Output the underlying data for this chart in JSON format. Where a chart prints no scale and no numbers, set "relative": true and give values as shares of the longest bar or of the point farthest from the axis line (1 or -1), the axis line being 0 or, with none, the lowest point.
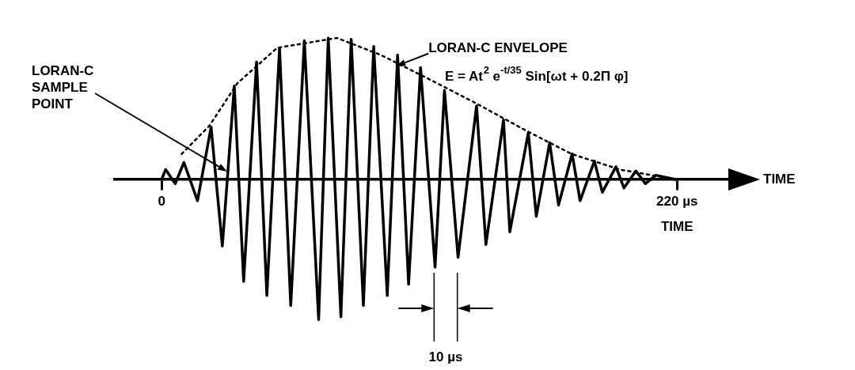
{
  "chart_data": {
    "type": "line",
    "relative": true,
    "xlabel": "TIME",
    "xlim": [
      -20,
      252
    ],
    "xticks": [
      0,
      {
        "value": 220,
        "label": "220 µs"
      }
    ],
    "series": [
      {
        "color": "#000000",
        "line_style": "solid",
        "x": [
          0,
          1.7,
          5.8,
          9.5,
          15.3,
          21.1,
          25.9,
          31.0,
          35.0,
          40.5,
          44.9,
          50.3,
          55.1,
          60.9,
          67.0,
          71.1,
          76.5,
          80.9,
          86.1,
          90.5,
          96.3,
          100.7,
          105.4,
          110.5,
          116.7,
          120.7,
          126.5,
          134.4,
          138.4,
          145.9,
          148.6,
          156.5,
          159.9,
          165.6,
          169.4,
          175.2,
          178.6,
          184.7,
          188.1,
          193.9,
          197.3,
          202.4,
          206.5,
          210.9,
          219.4
        ],
        "values": [
          0,
          0.07,
          -0.03,
          0.12,
          -0.15,
          0.37,
          -0.47,
          0.66,
          -0.72,
          0.83,
          -0.82,
          0.93,
          -0.89,
          0.98,
          -0.99,
          1,
          -0.97,
          0.99,
          -0.89,
          0.94,
          -0.82,
          0.88,
          -0.74,
          0.79,
          -0.62,
          0.63,
          -0.55,
          0.52,
          -0.46,
          0.42,
          -0.37,
          0.33,
          -0.26,
          0.26,
          -0.18,
          0.18,
          -0.15,
          0.13,
          -0.09,
          0.09,
          -0.06,
          0.06,
          -0.03,
          0.03,
          0
        ]
      },
      {
        "color": "#000000",
        "line_style": "dotted",
        "x": [
          8.5,
          20.4,
          32.3,
          49.3,
          74.8,
          93.5,
          114,
          134,
          155,
          175,
          195.6,
          216
        ],
        "values": [
          0.18,
          0.38,
          0.68,
          0.93,
          1.0,
          0.88,
          0.71,
          0.54,
          0.35,
          0.18,
          0.07,
          0.01
        ]
      }
    ],
    "annotations": [
      {
        "text": "LORAN-C ENVELOPE",
        "x": 100,
        "y": 0.8
      },
      "LORAN-C SAMPLE POINT",
      "E = At$^{2}$ e$^{-t/35}$ Sin[ωt + 0.2Π φ]",
      "10 µs",
      "TIME"
    ]
  }
}
